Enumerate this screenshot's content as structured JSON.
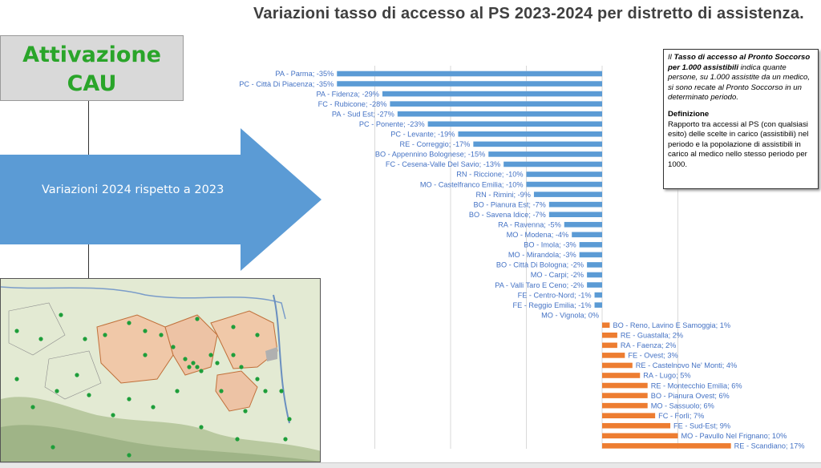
{
  "page": {
    "title": "Variazioni tasso di accesso al PS 2023-2024 per distretto di assistenza.",
    "cau_label_1": "Attivazione",
    "cau_label_2": "CAU",
    "arrow_label": "Variazioni 2024 rispetto a 2023"
  },
  "info_box": {
    "line1_italic_a": "Il",
    "line1_bold": "Tasso di accesso al Pronto Soccorso per 1.000 assistibili",
    "line1_italic_b": "indica quante persone, su 1.000 assistite da un medico, si sono recate al Pronto Soccorso in un determinato periodo.",
    "def_title": "Definizione",
    "def_text": "Rapporto tra accessi al PS (con qualsiasi esito) delle scelte in carico (assistibili) nel periodo e la popolazione di assistibili in carico al medico nello stesso periodo per 1000."
  },
  "colors": {
    "negative": "#5b9bd5",
    "positive": "#ed7d31",
    "label": "#4472c4",
    "title": "#404040",
    "cau_green": "#2aa52a",
    "arrow": "#5b9bd5"
  },
  "map": {
    "icon": "regional-map-thumbnail"
  },
  "chart_data": {
    "type": "bar",
    "orientation": "horizontal",
    "xlim": [
      -40,
      20
    ],
    "gridlines": [
      -30,
      -20,
      -10,
      0,
      10
    ],
    "categories": [
      "PA - Parma",
      "PC - Città Di Piacenza",
      "PA - Fidenza",
      "FC - Rubicone",
      "PA - Sud Est",
      "PC - Ponente",
      "PC - Levante",
      "RE - Correggio",
      "BO - Appennino Bolognese",
      "FC - Cesena-Valle Del Savio",
      "RN - Riccione",
      "MO - Castelfranco Emilia",
      "RN - Rimini",
      "BO - Pianura Est",
      "BO - Savena Idice",
      "RA - Ravenna",
      "MO - Modena",
      "BO - Imola",
      "MO - Mirandola",
      "BO - Città Di Bologna",
      "MO - Carpi",
      "PA - Valli Taro E Ceno",
      "FE - Centro-Nord",
      "FE - Reggio Emilia",
      "MO - Vignola",
      "BO - Reno, Lavino E Samoggia",
      "RE - Guastalla",
      "RA - Faenza",
      "FE - Ovest",
      "RE - Castelnovo Ne' Monti",
      "RA - Lugo",
      "RE - Montecchio Emilia",
      "BO - Pianura Ovest",
      "MO - Sassuolo",
      "FC - Forlì",
      "FE - Sud-Est",
      "MO - Pavullo Nel Frignano",
      "RE - Scandiano"
    ],
    "values": [
      -35,
      -35,
      -29,
      -28,
      -27,
      -23,
      -19,
      -17,
      -15,
      -13,
      -10,
      -10,
      -9,
      -7,
      -7,
      -5,
      -4,
      -3,
      -3,
      -2,
      -2,
      -2,
      -1,
      -1,
      0,
      1,
      2,
      2,
      3,
      4,
      5,
      6,
      6,
      6,
      7,
      9,
      10,
      17
    ],
    "labels": [
      "PA - Parma; -35%",
      "PC - Città Di Piacenza; -35%",
      "PA - Fidenza; -29%",
      "FC - Rubicone; -28%",
      "PA - Sud Est; -27%",
      "PC - Ponente; -23%",
      "PC - Levante; -19%",
      "RE - Correggio; -17%",
      "BO - Appennino Bolognese; -15%",
      "FC - Cesena-Valle Del Savio; -13%",
      "RN - Riccione; -10%",
      "MO - Castelfranco Emilia; -10%",
      "RN - Rimini; -9%",
      "BO - Pianura Est; -7%",
      "BO - Savena Idice; -7%",
      "RA - Ravenna; -5%",
      "MO - Modena; -4%",
      "BO - Imola; -3%",
      "MO - Mirandola; -3%",
      "BO - Città Di Bologna; -2%",
      "MO - Carpi; -2%",
      "PA - Valli Taro E Ceno; -2%",
      "FE - Centro-Nord; -1%",
      "FE - Reggio Emilia; -1%",
      "MO - Vignola; 0%",
      "BO - Reno, Lavino E Samoggia; 1%",
      "RE - Guastalla; 2%",
      "RA - Faenza; 2%",
      "FE - Ovest; 3%",
      "RE - Castelnovo Ne' Monti; 4%",
      "RA - Lugo; 5%",
      "RE - Montecchio Emilia; 6%",
      "BO - Pianura Ovest; 6%",
      "MO - Sassuolo; 6%",
      "FC - Forlì; 7%",
      "FE - Sud-Est; 9%",
      "MO - Pavullo Nel Frignano; 10%",
      "RE - Scandiano; 17%"
    ],
    "title": "Variazioni tasso di accesso al PS 2023-2024 per distretto di assistenza.",
    "xlabel": "",
    "ylabel": "",
    "legend": "none"
  }
}
